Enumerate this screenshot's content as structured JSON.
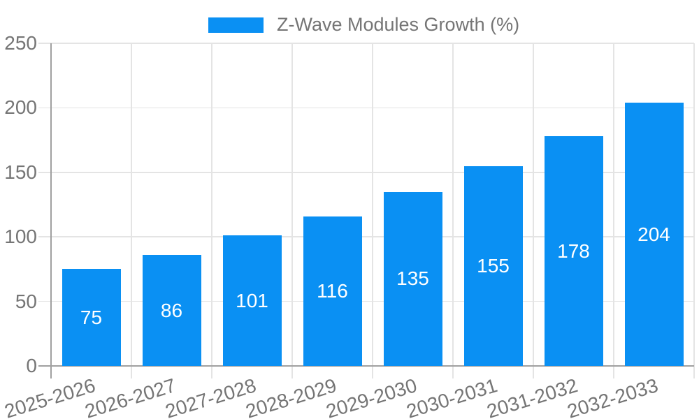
{
  "chart_data": {
    "type": "bar",
    "title": "Z-Wave Modules Growth (%)",
    "legend": {
      "label": "Z-Wave Modules Growth (%)",
      "position": "top-center"
    },
    "categories": [
      "2025-2026",
      "2026-2027",
      "2027-2028",
      "2028-2029",
      "2029-2030",
      "2030-2031",
      "2031-2032",
      "2032-2033"
    ],
    "values": [
      75,
      86,
      101,
      116,
      135,
      155,
      178,
      204
    ],
    "bar_value_labels": [
      "75",
      "86",
      "101",
      "116",
      "135",
      "155",
      "178",
      "204"
    ],
    "xlabel": "",
    "ylabel": "",
    "ylim": [
      0,
      250
    ],
    "yticks": [
      0,
      50,
      100,
      150,
      200,
      250
    ],
    "grid": true,
    "x_tick_rotation_deg": -17
  },
  "colors": {
    "bar": "#0a90f3",
    "gridline": "#e4e4e4",
    "axis": "#a0a0a0",
    "tick_text": "#757575",
    "bar_label_text": "#ffffff",
    "background": "#ffffff"
  }
}
